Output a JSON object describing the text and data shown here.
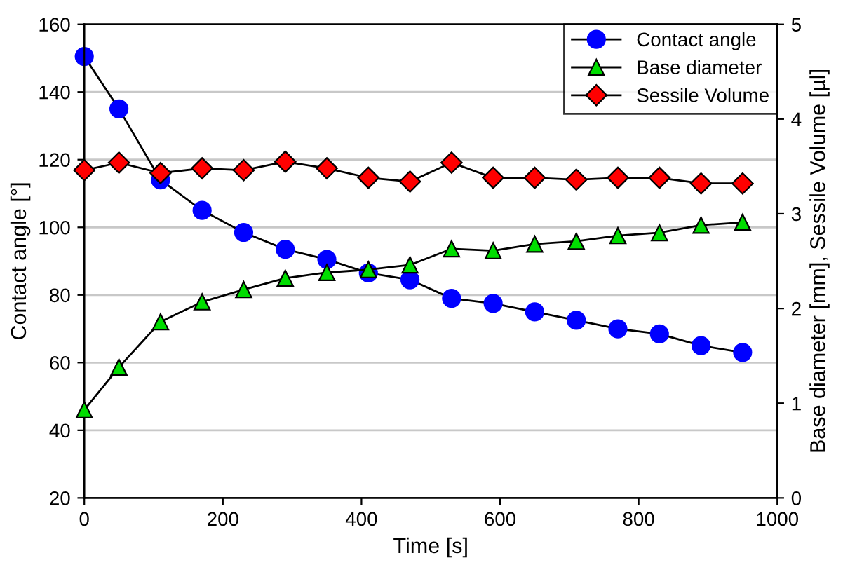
{
  "chart_data": {
    "type": "line",
    "xlabel": "Time [s]",
    "ylabel": "Contact angle [°]",
    "y2label": "Base diameter [mm], Sessile Volume [µl]",
    "x": [
      0,
      50,
      110,
      170,
      230,
      290,
      350,
      410,
      470,
      530,
      590,
      650,
      710,
      770,
      830,
      890,
      950
    ],
    "xlim": [
      0,
      1000
    ],
    "xticks": [
      0,
      200,
      400,
      600,
      800,
      1000
    ],
    "ylim": [
      20,
      160
    ],
    "yticks": [
      20,
      40,
      60,
      80,
      100,
      120,
      140,
      160
    ],
    "y2lim": [
      0,
      5
    ],
    "y2ticks": [
      0,
      1,
      2,
      3,
      4,
      5
    ],
    "grid": "y",
    "legend": "top right",
    "series": [
      {
        "name": "Contact angle",
        "color": "#0000ff",
        "marker": "circle",
        "values": [
          150.5,
          135,
          114,
          105,
          98.5,
          93.5,
          90.5,
          86.5,
          84.5,
          79,
          77.5,
          75,
          72.5,
          70,
          68.5,
          65,
          63
        ]
      },
      {
        "name": "Base diameter",
        "color": "#00dd00",
        "marker": "triangle",
        "axis": "y2",
        "values": [
          0.93,
          1.38,
          1.86,
          2.07,
          2.2,
          2.32,
          2.38,
          2.41,
          2.46,
          2.63,
          2.61,
          2.68,
          2.71,
          2.77,
          2.8,
          2.88,
          2.91
        ]
      },
      {
        "name": "Sessile Volume",
        "color": "#ff0000",
        "marker": "diamond",
        "axis": "y2",
        "values": [
          3.46,
          3.54,
          3.43,
          3.48,
          3.46,
          3.55,
          3.48,
          3.38,
          3.34,
          3.54,
          3.38,
          3.38,
          3.36,
          3.38,
          3.38,
          3.32,
          3.32
        ]
      }
    ]
  }
}
